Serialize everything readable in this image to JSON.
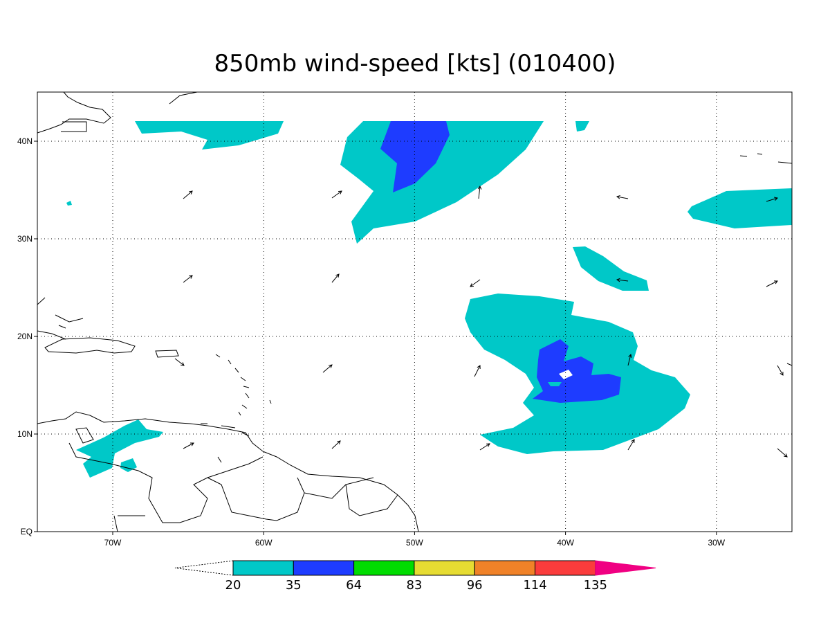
{
  "title": "850mb wind-speed [kts] (010400)",
  "map": {
    "lon_labels": [
      "70W",
      "60W",
      "50W",
      "40W",
      "30W"
    ],
    "lat_labels": [
      "EQ",
      "10N",
      "20N",
      "30N",
      "40N"
    ]
  },
  "colorbar": {
    "levels": [
      20,
      35,
      64,
      83,
      96,
      114,
      135
    ],
    "colors": [
      "#00c8c8",
      "#1e3cff",
      "#00dc00",
      "#e6dc32",
      "#f08228",
      "#fa3c3c",
      "#f00082"
    ]
  }
}
